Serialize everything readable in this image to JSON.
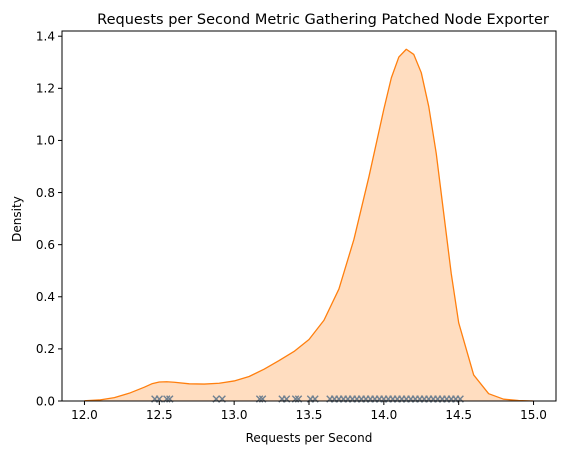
{
  "chart_data": {
    "type": "area",
    "title": "Requests per Second Metric Gathering Patched Node Exporter",
    "xlabel": "Requests per Second",
    "ylabel": "Density",
    "xlim": [
      11.85,
      15.15
    ],
    "ylim": [
      0,
      1.42
    ],
    "xticks": [
      12.0,
      12.5,
      13.0,
      13.5,
      14.0,
      14.5,
      15.0
    ],
    "xtick_labels": [
      "12.0",
      "12.5",
      "13.0",
      "13.5",
      "14.0",
      "14.5",
      "15.0"
    ],
    "yticks": [
      0.0,
      0.2,
      0.4,
      0.6,
      0.8,
      1.0,
      1.2,
      1.4
    ],
    "ytick_labels": [
      "0.0",
      "0.2",
      "0.4",
      "0.6",
      "0.8",
      "1.0",
      "1.2",
      "1.4"
    ],
    "grid": false,
    "series": [
      {
        "kind": "kde",
        "color": "#ff7f0e",
        "fill": "#ffddc0",
        "x": [
          12.0,
          12.1,
          12.2,
          12.3,
          12.4,
          12.45,
          12.5,
          12.55,
          12.6,
          12.7,
          12.8,
          12.9,
          13.0,
          13.1,
          13.2,
          13.3,
          13.4,
          13.5,
          13.6,
          13.7,
          13.8,
          13.9,
          14.0,
          14.05,
          14.1,
          14.15,
          14.2,
          14.25,
          14.3,
          14.35,
          14.4,
          14.45,
          14.5,
          14.6,
          14.7,
          14.8,
          14.9,
          15.0
        ],
        "y": [
          0.001,
          0.004,
          0.013,
          0.03,
          0.053,
          0.066,
          0.073,
          0.074,
          0.072,
          0.066,
          0.065,
          0.068,
          0.077,
          0.094,
          0.122,
          0.155,
          0.19,
          0.236,
          0.31,
          0.43,
          0.62,
          0.86,
          1.12,
          1.24,
          1.32,
          1.35,
          1.33,
          1.26,
          1.13,
          0.95,
          0.72,
          0.49,
          0.3,
          0.1,
          0.028,
          0.007,
          0.002,
          0.0
        ]
      }
    ],
    "rug": {
      "marker": "x",
      "color": "#708090",
      "values": [
        12.47,
        12.5,
        12.55,
        12.57,
        12.88,
        12.92,
        13.17,
        13.19,
        13.32,
        13.35,
        13.41,
        13.43,
        13.51,
        13.54,
        13.64,
        13.67,
        13.7,
        13.73,
        13.76,
        13.79,
        13.82,
        13.85,
        13.88,
        13.91,
        13.94,
        13.97,
        14.0,
        14.03,
        14.06,
        14.09,
        14.12,
        14.15,
        14.18,
        14.21,
        14.24,
        14.27,
        14.3,
        14.33,
        14.36,
        14.39,
        14.42,
        14.45,
        14.48,
        14.51
      ]
    }
  }
}
